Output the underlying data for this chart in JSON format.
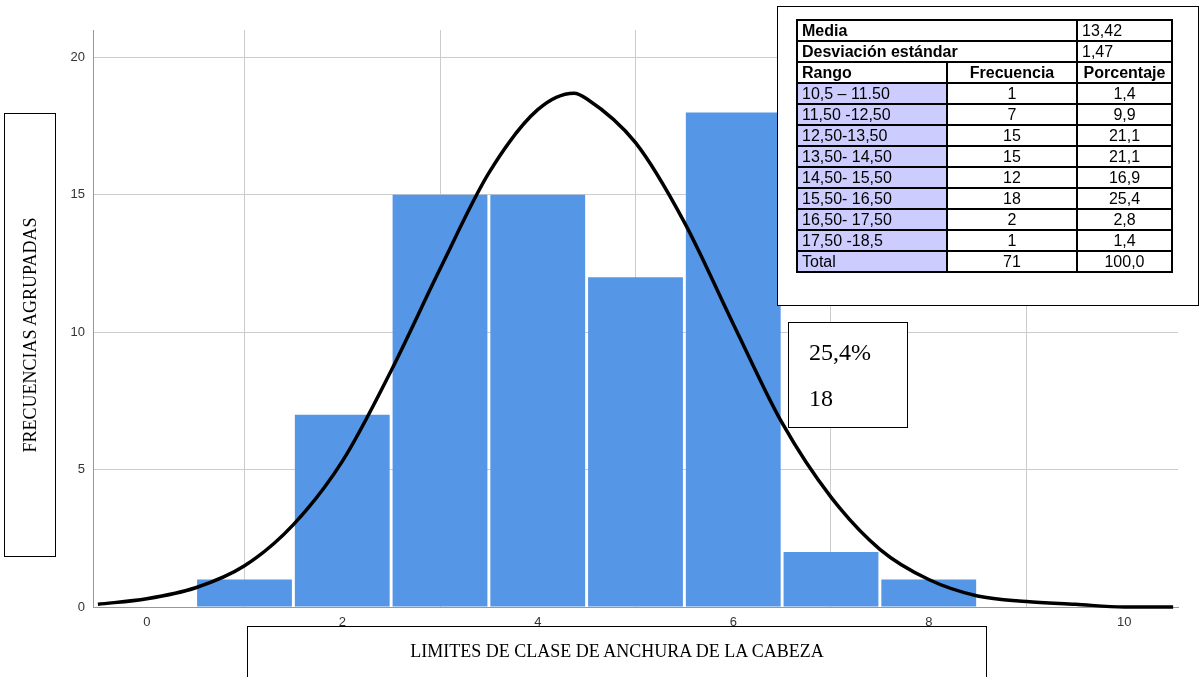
{
  "chart_data": {
    "type": "histogram",
    "xlabel": "LIMITES DE CLASE DE ANCHURA DE LA CABEZA",
    "ylabel": "FRECUENCIAS AGRUPADAS",
    "series": [
      {
        "type": "histogram",
        "color": "#5596e6",
        "bins": [
          0.5,
          1.5,
          2.5,
          3.5,
          4.5,
          5.5,
          6.5,
          7.5,
          8.5
        ],
        "values": [
          1,
          7,
          15,
          15,
          12,
          18,
          2,
          1
        ]
      },
      {
        "type": "line",
        "color": "#000000",
        "x": [
          -0.5,
          0,
          0.5,
          1,
          1.5,
          2,
          2.5,
          3,
          3.5,
          4,
          4.37,
          4.5,
          5,
          5.5,
          6,
          6.5,
          7,
          7.5,
          8,
          8.5,
          9,
          9.5,
          10,
          10.5
        ],
        "values": [
          0.1,
          0.3,
          0.7,
          1.5,
          3.0,
          5.3,
          8.6,
          12.3,
          15.8,
          18.1,
          18.7,
          18.5,
          16.9,
          14.0,
          10.3,
          6.7,
          4.0,
          2.1,
          1.0,
          0.4,
          0.2,
          0.1,
          0.0,
          0.0
        ]
      }
    ],
    "xlim": [
      -0.55,
      10.55
    ],
    "xticks": [
      0,
      2,
      4,
      6,
      8,
      10
    ],
    "ylim": [
      0,
      21
    ],
    "yticks": [
      0,
      5,
      10,
      15,
      20
    ],
    "grid": true,
    "marker": "none",
    "line_style": "solid",
    "annotations": [
      "Media",
      "13,42",
      "Desviación estándar",
      "1,47",
      "Rango",
      "Frecuencia",
      "Porcentaje",
      "10,5 – 11.50",
      "1",
      "1,4",
      "11,50 -12,50",
      "7",
      "9,9",
      "12,50-13,50",
      "15",
      "21,1",
      "13,50- 14,50",
      "15",
      "21,1",
      "14,50- 15,50",
      "12",
      "16,9",
      "15,50- 16,50",
      "18",
      "25,4",
      "16,50- 17,50",
      "2",
      "2,8",
      "17,50 -18,5",
      "1",
      "1,4",
      "Total",
      "71",
      "100,0",
      "25,4%",
      "18"
    ]
  }
}
